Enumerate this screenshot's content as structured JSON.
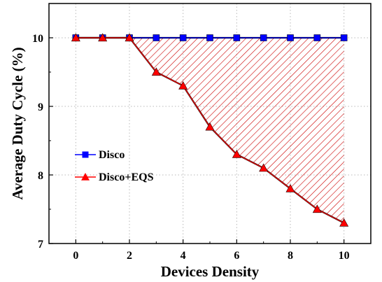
{
  "chart_data": {
    "type": "line",
    "xlabel": "Devices Density",
    "ylabel": "Average Duty Cycle (%)",
    "xlim": [
      -1,
      11
    ],
    "ylim": [
      7,
      10.5
    ],
    "xticks": [
      0,
      2,
      4,
      6,
      8,
      10
    ],
    "xtick_labels": [
      "0",
      "2",
      "4",
      "6",
      "8",
      "10"
    ],
    "yticks": [
      7,
      8,
      9,
      10
    ],
    "ytick_labels": [
      "7",
      "8",
      "9",
      "10"
    ],
    "grid": true,
    "legend_position": "center-left",
    "shaded_region_between_series": true,
    "x": [
      0,
      1,
      2,
      3,
      4,
      5,
      6,
      7,
      8,
      9,
      10
    ],
    "series": [
      {
        "name": "Disco",
        "values": [
          10,
          10,
          10,
          10,
          10,
          10,
          10,
          10,
          10,
          10,
          10
        ],
        "marker": "square",
        "color": "#0000ff"
      },
      {
        "name": "Disco+EQS",
        "values": [
          10,
          10,
          10,
          9.5,
          9.3,
          8.7,
          8.3,
          8.1,
          7.8,
          7.5,
          7.3
        ],
        "marker": "triangle",
        "color": "#ff0000"
      }
    ],
    "fill_color": "#cc0000"
  }
}
